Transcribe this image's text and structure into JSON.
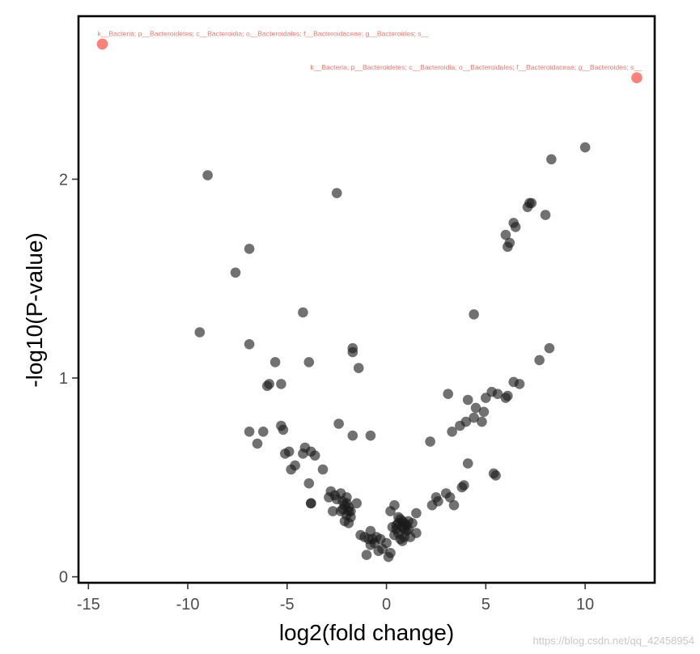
{
  "chart_data": {
    "type": "scatter",
    "title": "",
    "xlabel": "log2(fold change)",
    "ylabel": "-log10(P-value)",
    "xlim": [
      -15.5,
      13.5
    ],
    "ylim": [
      -0.03,
      2.82
    ],
    "xticks": [
      -15,
      -10,
      -5,
      0,
      5,
      10
    ],
    "yticks": [
      0,
      1,
      2
    ],
    "xtick_labels": [
      "-15",
      "-10",
      "-5",
      "0",
      "5",
      "10"
    ],
    "ytick_labels": [
      "0",
      "1",
      "2"
    ],
    "grid": false,
    "legend": "none",
    "colors": {
      "highlight": "#f8766d",
      "normal": "#1a1a1a",
      "frame": "#000000"
    },
    "highlighted": [
      {
        "x": -14.3,
        "y": 2.68,
        "label": "k__Bacteria; p__Bacteroidetes; c__Bacteroidia; o__Bacteroidales; f__Bacteroidaceae; g__Bacteroides; s__"
      },
      {
        "x": 12.6,
        "y": 2.51,
        "label": "k__Bacteria; p__Bacteroidetes; c__Bacteroidia; o__Bacteroidales; f__Bacteroidaceae; g__Bacteroides; s__"
      }
    ],
    "points": [
      [
        -9.0,
        2.02
      ],
      [
        -2.5,
        1.93
      ],
      [
        -6.9,
        1.65
      ],
      [
        -7.6,
        1.53
      ],
      [
        -4.2,
        1.33
      ],
      [
        -9.4,
        1.23
      ],
      [
        -6.9,
        1.17
      ],
      [
        -1.7,
        1.15
      ],
      [
        -1.7,
        1.13
      ],
      [
        -5.6,
        1.08
      ],
      [
        -3.9,
        1.08
      ],
      [
        -1.4,
        1.05
      ],
      [
        -6.0,
        0.96
      ],
      [
        -5.9,
        0.97
      ],
      [
        -5.3,
        0.97
      ],
      [
        -6.9,
        0.73
      ],
      [
        -6.2,
        0.73
      ],
      [
        -5.3,
        0.76
      ],
      [
        -5.2,
        0.74
      ],
      [
        -6.5,
        0.67
      ],
      [
        -2.4,
        0.77
      ],
      [
        -1.7,
        0.71
      ],
      [
        -0.8,
        0.71
      ],
      [
        -5.1,
        0.62
      ],
      [
        -4.9,
        0.63
      ],
      [
        -4.1,
        0.65
      ],
      [
        -3.8,
        0.63
      ],
      [
        -3.6,
        0.61
      ],
      [
        -4.2,
        0.62
      ],
      [
        -4.6,
        0.56
      ],
      [
        -4.8,
        0.54
      ],
      [
        -3.2,
        0.54
      ],
      [
        -3.9,
        0.47
      ],
      [
        -3.8,
        0.37
      ],
      [
        -3.8,
        0.37
      ],
      [
        -2.8,
        0.43
      ],
      [
        -2.9,
        0.4
      ],
      [
        -2.6,
        0.41
      ],
      [
        -2.5,
        0.39
      ],
      [
        -2.3,
        0.42
      ],
      [
        -2.2,
        0.38
      ],
      [
        -2.1,
        0.36
      ],
      [
        -2.0,
        0.4
      ],
      [
        -1.9,
        0.35
      ],
      [
        -2.2,
        0.34
      ],
      [
        -2.0,
        0.31
      ],
      [
        -1.8,
        0.3
      ],
      [
        -2.1,
        0.28
      ],
      [
        -1.9,
        0.27
      ],
      [
        -2.3,
        0.33
      ],
      [
        -1.5,
        0.37
      ],
      [
        -2.7,
        0.33
      ],
      [
        -1.8,
        0.33
      ],
      [
        -2.0,
        0.37
      ],
      [
        -1.9,
        0.33
      ],
      [
        -1.3,
        0.21
      ],
      [
        -1.1,
        0.2
      ],
      [
        -0.8,
        0.23
      ],
      [
        -0.9,
        0.19
      ],
      [
        -0.7,
        0.19
      ],
      [
        -0.6,
        0.17
      ],
      [
        -0.8,
        0.16
      ],
      [
        -0.5,
        0.2
      ],
      [
        -0.3,
        0.19
      ],
      [
        -0.4,
        0.13
      ],
      [
        -1.0,
        0.11
      ],
      [
        -0.2,
        0.14
      ],
      [
        0.1,
        0.1
      ],
      [
        0.2,
        0.12
      ],
      [
        0.0,
        0.17
      ],
      [
        0.2,
        0.33
      ],
      [
        0.4,
        0.36
      ],
      [
        0.3,
        0.25
      ],
      [
        0.5,
        0.26
      ],
      [
        0.6,
        0.27
      ],
      [
        0.7,
        0.29
      ],
      [
        0.8,
        0.28
      ],
      [
        0.9,
        0.27
      ],
      [
        1.0,
        0.26
      ],
      [
        1.1,
        0.28
      ],
      [
        0.6,
        0.22
      ],
      [
        0.7,
        0.19
      ],
      [
        0.8,
        0.18
      ],
      [
        1.0,
        0.23
      ],
      [
        1.2,
        0.2
      ],
      [
        1.3,
        0.27
      ],
      [
        1.5,
        0.22
      ],
      [
        1.5,
        0.32
      ],
      [
        0.9,
        0.24
      ],
      [
        0.5,
        0.24
      ],
      [
        0.6,
        0.3
      ],
      [
        0.8,
        0.25
      ],
      [
        1.1,
        0.24
      ],
      [
        0.4,
        0.21
      ],
      [
        0.9,
        0.2
      ],
      [
        2.2,
        0.68
      ],
      [
        2.3,
        0.36
      ],
      [
        2.5,
        0.4
      ],
      [
        2.6,
        0.38
      ],
      [
        3.0,
        0.42
      ],
      [
        3.2,
        0.4
      ],
      [
        3.4,
        0.36
      ],
      [
        3.8,
        0.45
      ],
      [
        3.9,
        0.46
      ],
      [
        4.1,
        0.57
      ],
      [
        3.1,
        0.92
      ],
      [
        3.3,
        0.73
      ],
      [
        3.7,
        0.76
      ],
      [
        4.0,
        0.78
      ],
      [
        4.4,
        0.8
      ],
      [
        4.1,
        0.89
      ],
      [
        4.5,
        0.85
      ],
      [
        4.8,
        0.78
      ],
      [
        4.9,
        0.83
      ],
      [
        5.0,
        0.9
      ],
      [
        5.3,
        0.93
      ],
      [
        5.6,
        0.92
      ],
      [
        6.0,
        0.9
      ],
      [
        6.1,
        0.91
      ],
      [
        6.4,
        0.98
      ],
      [
        6.7,
        0.97
      ],
      [
        7.7,
        1.09
      ],
      [
        8.2,
        1.15
      ],
      [
        5.4,
        0.52
      ],
      [
        5.5,
        0.51
      ],
      [
        4.4,
        1.32
      ],
      [
        6.0,
        1.72
      ],
      [
        6.1,
        1.66
      ],
      [
        6.2,
        1.68
      ],
      [
        6.4,
        1.78
      ],
      [
        6.5,
        1.76
      ],
      [
        7.1,
        1.86
      ],
      [
        7.2,
        1.88
      ],
      [
        7.3,
        1.88
      ],
      [
        8.0,
        1.82
      ],
      [
        8.3,
        2.1
      ],
      [
        10.0,
        2.16
      ]
    ]
  },
  "watermark": "https://blog.csdn.net/qq_42458954"
}
